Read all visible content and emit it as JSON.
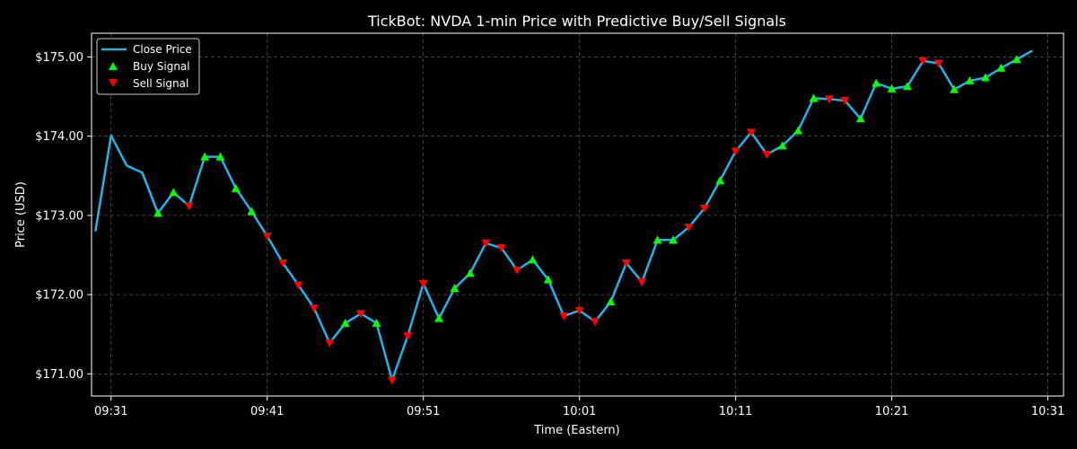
{
  "chart_data": {
    "type": "line",
    "title": "TickBot: NVDA 1-min Price with Predictive Buy/Sell Signals",
    "xlabel": "Time (Eastern)",
    "ylabel": "Price (USD)",
    "x_ticks": [
      "09:31",
      "09:41",
      "09:51",
      "10:01",
      "10:11",
      "10:21",
      "10:31"
    ],
    "y_ticks": [
      "$171.00",
      "$172.00",
      "$173.00",
      "$174.00",
      "$175.00"
    ],
    "xlim": [
      "09:29:45",
      "10:32:00"
    ],
    "ylim": [
      170.72,
      175.3
    ],
    "grid": true,
    "legend_position": "top-left",
    "colors": {
      "background": "#000000",
      "line": "#1fb5ea",
      "buy": "#00ff00",
      "sell": "#ff0000",
      "grid": "#555555",
      "axis": "#ffffff"
    },
    "series": [
      {
        "name": "Close Price",
        "x": [
          "09:30",
          "09:31",
          "09:32",
          "09:33",
          "09:34",
          "09:35",
          "09:36",
          "09:37",
          "09:38",
          "09:39",
          "09:40",
          "09:41",
          "09:42",
          "09:43",
          "09:44",
          "09:45",
          "09:46",
          "09:47",
          "09:48",
          "09:49",
          "09:50",
          "09:51",
          "09:52",
          "09:53",
          "09:54",
          "09:55",
          "09:56",
          "09:57",
          "09:58",
          "09:59",
          "10:00",
          "10:01",
          "10:02",
          "10:03",
          "10:04",
          "10:05",
          "10:06",
          "10:07",
          "10:08",
          "10:09",
          "10:10",
          "10:11",
          "10:12",
          "10:13",
          "10:14",
          "10:15",
          "10:16",
          "10:17",
          "10:18",
          "10:19",
          "10:20",
          "10:21",
          "10:22",
          "10:23",
          "10:24",
          "10:25",
          "10:26",
          "10:27",
          "10:28",
          "10:29",
          "10:30"
        ],
        "y": [
          172.8,
          174.01,
          173.63,
          173.54,
          173.03,
          173.29,
          173.12,
          173.74,
          173.74,
          173.34,
          173.05,
          172.74,
          172.4,
          172.12,
          171.83,
          171.39,
          171.64,
          171.76,
          171.64,
          170.92,
          171.48,
          172.14,
          171.7,
          172.08,
          172.27,
          172.65,
          172.59,
          172.31,
          172.44,
          172.19,
          171.73,
          171.8,
          171.66,
          171.91,
          172.4,
          172.16,
          172.69,
          172.69,
          172.85,
          173.09,
          173.44,
          173.81,
          174.05,
          173.77,
          173.88,
          174.07,
          174.48,
          174.47,
          174.45,
          174.22,
          174.67,
          174.6,
          174.63,
          174.95,
          174.92,
          174.59,
          174.7,
          174.74,
          174.86,
          174.97,
          175.08
        ]
      },
      {
        "name": "Buy Signal",
        "x": [
          "09:34",
          "09:35",
          "09:37",
          "09:38",
          "09:39",
          "09:40",
          "09:46",
          "09:48",
          "09:52",
          "09:53",
          "09:54",
          "09:58",
          "09:59",
          "10:03",
          "10:06",
          "10:07",
          "10:10",
          "10:14",
          "10:15",
          "10:16",
          "10:19",
          "10:20",
          "10:21",
          "10:22",
          "10:25",
          "10:26",
          "10:27",
          "10:28",
          "10:29"
        ],
        "y": [
          173.03,
          173.29,
          173.74,
          173.74,
          173.34,
          173.05,
          171.64,
          171.64,
          171.7,
          172.08,
          172.27,
          172.44,
          172.19,
          171.91,
          172.69,
          172.69,
          173.44,
          173.88,
          174.07,
          174.48,
          174.22,
          174.67,
          174.6,
          174.63,
          174.59,
          174.7,
          174.74,
          174.86,
          174.97
        ]
      },
      {
        "name": "Sell Signal",
        "x": [
          "09:36",
          "09:41",
          "09:42",
          "09:43",
          "09:44",
          "09:45",
          "09:47",
          "09:49",
          "09:50",
          "09:51",
          "09:55",
          "09:56",
          "09:57",
          "10:00",
          "10:01",
          "10:02",
          "10:04",
          "10:05",
          "10:08",
          "10:09",
          "10:11",
          "10:12",
          "10:13",
          "10:17",
          "10:18",
          "10:23",
          "10:24"
        ],
        "y": [
          173.12,
          172.74,
          172.4,
          172.12,
          171.83,
          171.39,
          171.76,
          170.92,
          171.48,
          172.14,
          172.65,
          172.59,
          172.31,
          171.73,
          171.8,
          171.66,
          172.4,
          172.16,
          172.85,
          173.09,
          173.81,
          174.05,
          173.77,
          174.47,
          174.45,
          174.95,
          174.92
        ]
      }
    ]
  }
}
